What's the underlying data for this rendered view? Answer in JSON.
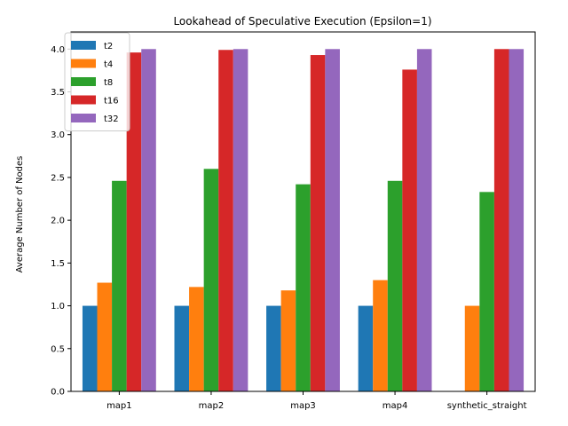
{
  "chart_data": {
    "type": "bar",
    "title": "Lookahead of Speculative Execution (Epsilon=1)",
    "xlabel": "",
    "ylabel": "Average Number of Nodes",
    "categories": [
      "map1",
      "map2",
      "map3",
      "map4",
      "synthetic_straight"
    ],
    "ylim": [
      0,
      4.2
    ],
    "yticks": [
      "0.0",
      "0.5",
      "1.0",
      "1.5",
      "2.0",
      "2.5",
      "3.0",
      "3.5",
      "4.0"
    ],
    "grid": false,
    "legend_position": "top-left",
    "series": [
      {
        "name": "t2",
        "color": "#1f77b4",
        "values": [
          1.0,
          1.0,
          1.0,
          1.0,
          0.0
        ]
      },
      {
        "name": "t4",
        "color": "#ff7f0e",
        "values": [
          1.27,
          1.22,
          1.18,
          1.3,
          1.0
        ]
      },
      {
        "name": "t8",
        "color": "#2ca02c",
        "values": [
          2.46,
          2.6,
          2.42,
          2.46,
          2.33
        ]
      },
      {
        "name": "t16",
        "color": "#d62728",
        "values": [
          3.96,
          3.99,
          3.93,
          3.76,
          4.0
        ]
      },
      {
        "name": "t32",
        "color": "#9467bd",
        "values": [
          4.0,
          4.0,
          4.0,
          4.0,
          4.0
        ]
      }
    ]
  }
}
